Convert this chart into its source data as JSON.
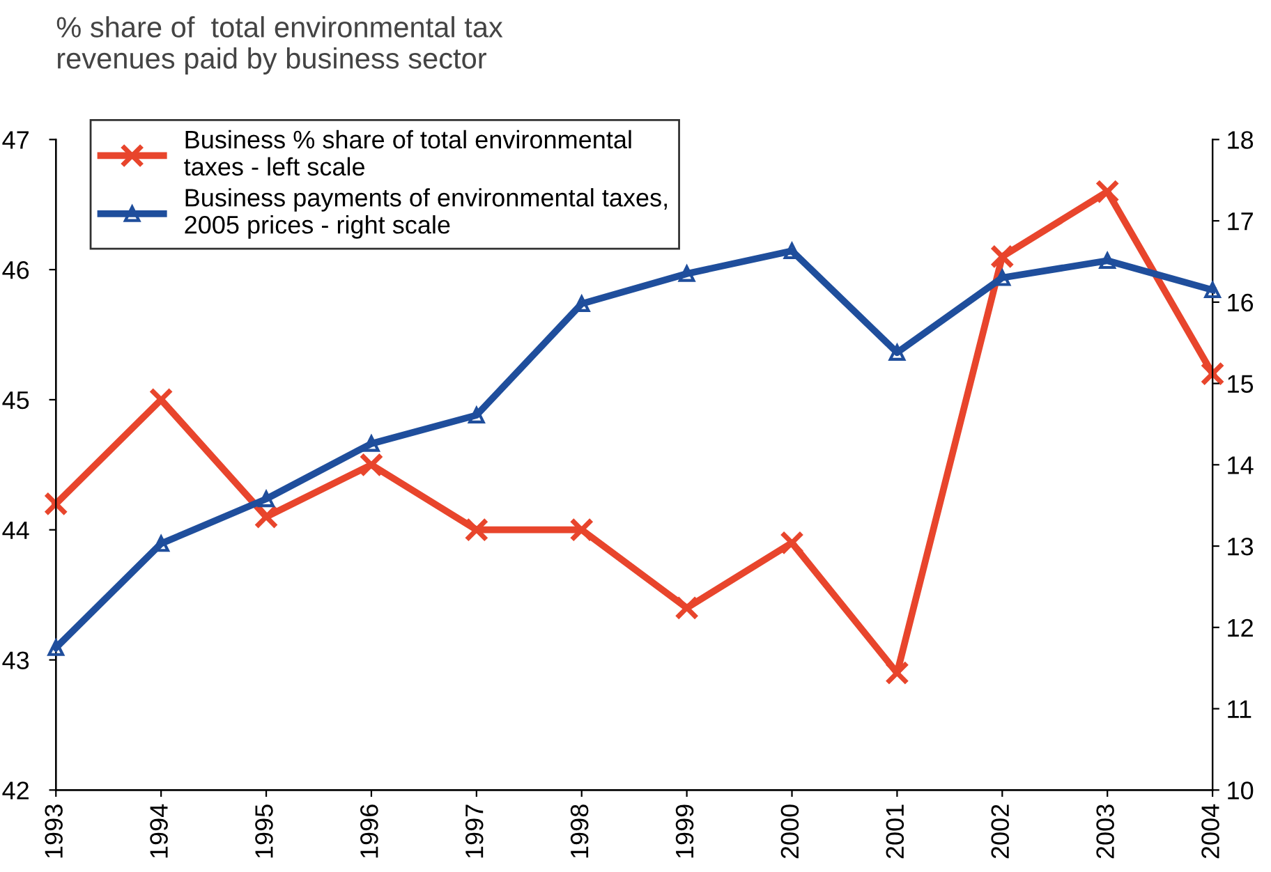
{
  "chart_data": {
    "type": "line",
    "ylabel": "% share of  total environmental tax\nrevenues paid by business sector",
    "categories": [
      "1993",
      "1994",
      "1995",
      "1996",
      "1997",
      "1998",
      "1999",
      "2000",
      "2001",
      "2002",
      "2003",
      "2004"
    ],
    "series": [
      {
        "name": "Business % share of total environmental\ntaxes - left scale",
        "color": "#e8452c",
        "marker": "cross",
        "values": [
          44.2,
          45.0,
          44.1,
          44.5,
          44.0,
          44.0,
          43.4,
          43.9,
          42.9,
          46.1,
          46.6,
          45.2
        ]
      },
      {
        "name": "Business payments of environmental taxes,\n2005 prices - right scale",
        "color": "#1f4e9c",
        "marker": "triangle",
        "axis": "y2",
        "values": [
          11.75,
          13.03,
          13.58,
          14.26,
          14.61,
          15.98,
          16.35,
          16.63,
          15.38,
          16.3,
          16.51,
          16.15
        ]
      }
    ],
    "ylim": [
      42,
      47
    ],
    "yticks": [
      42,
      43,
      44,
      45,
      46,
      47
    ],
    "y2lim": [
      10,
      18
    ],
    "y2ticks": [
      10,
      11,
      12,
      13,
      14,
      15,
      16,
      17,
      18
    ],
    "grid": false,
    "legend": "top left",
    "line_style": "solid"
  }
}
